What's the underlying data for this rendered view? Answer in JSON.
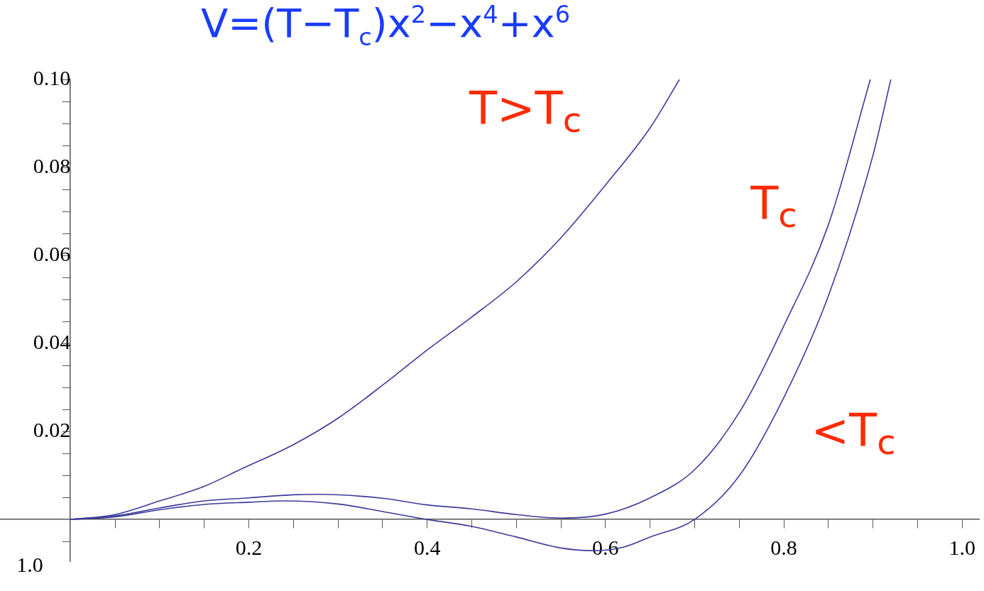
{
  "chart_data": {
    "type": "line",
    "title": "V=(T−T$_{c}$)x$^{2}$−x$^{4}$+x$^{6}$",
    "xlim": [
      -0.079,
      1.019
    ],
    "xticks": [
      {
        "value": 0.05,
        "label": null
      },
      {
        "value": 0.1,
        "label": null
      },
      {
        "value": 0.15,
        "label": null
      },
      0.2,
      {
        "value": 0.25,
        "label": null
      },
      {
        "value": 0.3,
        "label": null
      },
      {
        "value": 0.35,
        "label": null
      },
      0.4,
      {
        "value": 0.45,
        "label": null
      },
      {
        "value": 0.5,
        "label": null
      },
      {
        "value": 0.55,
        "label": null
      },
      0.6,
      {
        "value": 0.65,
        "label": null
      },
      {
        "value": 0.7,
        "label": null
      },
      {
        "value": 0.75,
        "label": null
      },
      0.8,
      {
        "value": 0.85,
        "label": null
      },
      {
        "value": 0.9,
        "label": null
      },
      {
        "value": 0.95,
        "label": null
      },
      {
        "value": 1,
        "label": "1.0"
      }
    ],
    "ylim": [
      -0.0095,
      0.1
    ],
    "yticks": [
      {
        "value": -0.005,
        "label": null
      },
      {
        "value": 0.005,
        "label": null
      },
      {
        "value": 0.01,
        "label": null
      },
      {
        "value": 0.015,
        "label": null
      },
      0.02,
      {
        "value": 0.025,
        "label": null
      },
      {
        "value": 0.03,
        "label": null
      },
      {
        "value": 0.035,
        "label": null
      },
      0.04,
      {
        "value": 0.045,
        "label": null
      },
      {
        "value": 0.05,
        "label": null
      },
      {
        "value": 0.055,
        "label": null
      },
      0.06,
      {
        "value": 0.065,
        "label": null
      },
      {
        "value": 0.07,
        "label": null
      },
      {
        "value": 0.075,
        "label": null
      },
      0.08,
      {
        "value": 0.085,
        "label": null
      },
      {
        "value": 0.09,
        "label": null
      },
      {
        "value": 0.095,
        "label": null
      },
      {
        "value": 0.1,
        "label": "0.10"
      }
    ],
    "marker": "none",
    "series": [
      {
        "color": "#3b3b9c",
        "x": [
          0,
          0.05,
          0.1,
          0.15,
          0.19,
          0.25,
          0.3,
          0.35,
          0.4,
          0.45,
          0.5,
          0.55,
          0.6,
          0.65,
          0.683
        ],
        "values": [
          0,
          0.0011,
          0.0042,
          0.0075,
          0.0113,
          0.017,
          0.023,
          0.0305,
          0.0385,
          0.046,
          0.054,
          0.064,
          0.076,
          0.089,
          0.1
        ]
      },
      {
        "color": "#3b3b9c",
        "x": [
          0,
          0.05,
          0.1,
          0.15,
          0.2,
          0.25,
          0.28,
          0.35,
          0.4,
          0.45,
          0.5,
          0.55,
          0.6,
          0.65,
          0.7,
          0.75,
          0.8,
          0.85,
          0.897
        ],
        "values": [
          0,
          0.0008,
          0.0026,
          0.0042,
          0.0049,
          0.0056,
          0.0057,
          0.0048,
          0.0033,
          0.0024,
          0.0011,
          0.0003,
          0.0012,
          0.0049,
          0.0113,
          0.0243,
          0.044,
          0.067,
          0.1
        ]
      },
      {
        "color": "#3b3b9c",
        "x": [
          0,
          0.05,
          0.1,
          0.15,
          0.2,
          0.24,
          0.3,
          0.35,
          0.4,
          0.45,
          0.5,
          0.55,
          0.585,
          0.62,
          0.65,
          0.7,
          0.75,
          0.8,
          0.85,
          0.9,
          0.92
        ],
        "values": [
          0,
          0.0006,
          0.0022,
          0.0034,
          0.0039,
          0.0042,
          0.0035,
          0.0018,
          0,
          -0.0016,
          -0.004,
          -0.0065,
          -0.0071,
          -0.0063,
          -0.004,
          0,
          0.0099,
          0.0277,
          0.0508,
          0.0828,
          0.1
        ]
      }
    ],
    "annotations": [
      "T>T$_{c}$",
      "T$_{c}$",
      "<T$_{c}$",
      "1.0"
    ]
  }
}
